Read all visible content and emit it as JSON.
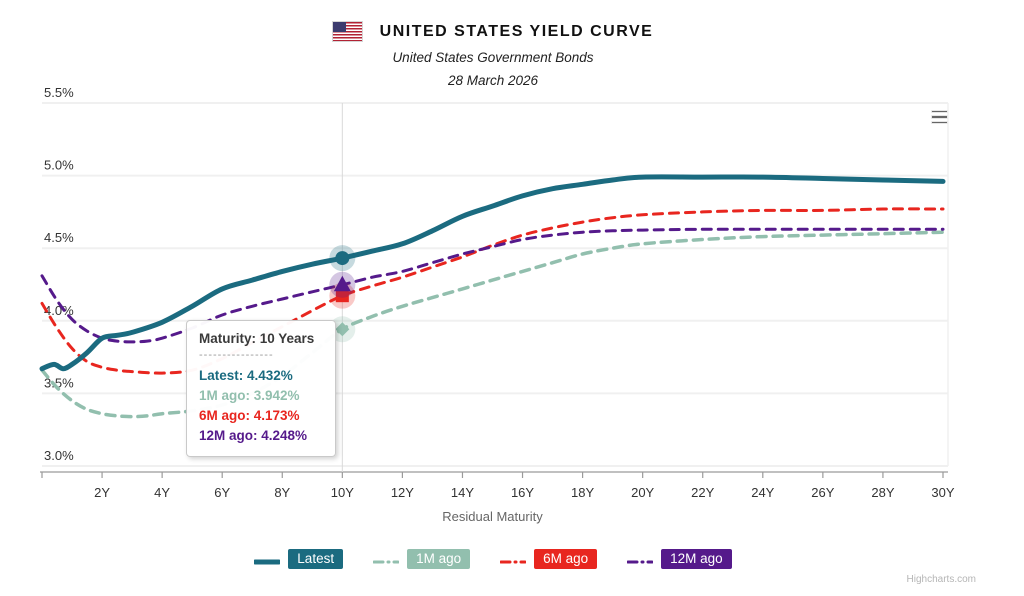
{
  "header": {
    "title": "UNITED STATES YIELD CURVE",
    "subtitle": "United States Government Bonds",
    "date": "28 March 2026"
  },
  "chart_data": {
    "type": "line",
    "title": "UNITED STATES YIELD CURVE",
    "subtitle": "United States Government Bonds",
    "date_annotation": "28 March 2026",
    "xlabel": "Residual Maturity",
    "ylabel": "",
    "xlim": [
      0,
      30
    ],
    "ylim": [
      3.0,
      5.5
    ],
    "grid": "horizontal",
    "legend_position": "bottom",
    "hover_maturity_years": 10,
    "y_ticks": [
      {
        "v": 5.5,
        "label": "5.5%"
      },
      {
        "v": 5.0,
        "label": "5.0%"
      },
      {
        "v": 4.5,
        "label": "4.5%"
      },
      {
        "v": 4.0,
        "label": "4.0%"
      },
      {
        "v": 3.5,
        "label": "3.5%"
      },
      {
        "v": 3.0,
        "label": "3.0%"
      }
    ],
    "x_ticks": [
      {
        "v": 0,
        "label": ""
      },
      {
        "v": 2,
        "label": "2Y"
      },
      {
        "v": 4,
        "label": "4Y"
      },
      {
        "v": 6,
        "label": "6Y"
      },
      {
        "v": 8,
        "label": "8Y"
      },
      {
        "v": 10,
        "label": "10Y"
      },
      {
        "v": 12,
        "label": "12Y"
      },
      {
        "v": 14,
        "label": "14Y"
      },
      {
        "v": 16,
        "label": "16Y"
      },
      {
        "v": 18,
        "label": "18Y"
      },
      {
        "v": 20,
        "label": "20Y"
      },
      {
        "v": 22,
        "label": "22Y"
      },
      {
        "v": 24,
        "label": "24Y"
      },
      {
        "v": 26,
        "label": "26Y"
      },
      {
        "v": 28,
        "label": "28Y"
      },
      {
        "v": 30,
        "label": "30Y"
      }
    ],
    "series": [
      {
        "name": "Latest",
        "color": "#1b6b80",
        "dash": "solid",
        "width": 5,
        "marker": "circle",
        "value_at_10y": 4.432,
        "points": [
          [
            0,
            3.67
          ],
          [
            0.4,
            3.7
          ],
          [
            0.7,
            3.67
          ],
          [
            1,
            3.7
          ],
          [
            1.5,
            3.78
          ],
          [
            2,
            3.88
          ],
          [
            2.5,
            3.9
          ],
          [
            3,
            3.92
          ],
          [
            4,
            3.99
          ],
          [
            5,
            4.1
          ],
          [
            6,
            4.22
          ],
          [
            7,
            4.28
          ],
          [
            8,
            4.34
          ],
          [
            9,
            4.39
          ],
          [
            10,
            4.432
          ],
          [
            11,
            4.48
          ],
          [
            12,
            4.53
          ],
          [
            13,
            4.62
          ],
          [
            14,
            4.72
          ],
          [
            15,
            4.79
          ],
          [
            16,
            4.86
          ],
          [
            17,
            4.91
          ],
          [
            18,
            4.94
          ],
          [
            19,
            4.97
          ],
          [
            20,
            4.99
          ],
          [
            22,
            4.99
          ],
          [
            24,
            4.99
          ],
          [
            26,
            4.98
          ],
          [
            28,
            4.97
          ],
          [
            30,
            4.96
          ]
        ]
      },
      {
        "name": "1M ago",
        "color": "#92bfae",
        "dash": "dashed",
        "width": 3.5,
        "marker": "diamond",
        "value_at_10y": 3.942,
        "points": [
          [
            0,
            3.66
          ],
          [
            0.5,
            3.54
          ],
          [
            1,
            3.45
          ],
          [
            1.5,
            3.39
          ],
          [
            2,
            3.36
          ],
          [
            2.5,
            3.345
          ],
          [
            3,
            3.34
          ],
          [
            3.5,
            3.345
          ],
          [
            4,
            3.36
          ],
          [
            5,
            3.38
          ],
          [
            6,
            3.42
          ],
          [
            7,
            3.5
          ],
          [
            8,
            3.62
          ],
          [
            9,
            3.78
          ],
          [
            10,
            3.942
          ],
          [
            11,
            4.03
          ],
          [
            12,
            4.1
          ],
          [
            13,
            4.16
          ],
          [
            14,
            4.22
          ],
          [
            15,
            4.28
          ],
          [
            16,
            4.34
          ],
          [
            17,
            4.4
          ],
          [
            18,
            4.46
          ],
          [
            19,
            4.5
          ],
          [
            20,
            4.53
          ],
          [
            22,
            4.56
          ],
          [
            24,
            4.58
          ],
          [
            26,
            4.59
          ],
          [
            28,
            4.6
          ],
          [
            30,
            4.61
          ]
        ]
      },
      {
        "name": "6M ago",
        "color": "#e8261f",
        "dash": "dashed",
        "width": 3,
        "marker": "square",
        "value_at_10y": 4.173,
        "points": [
          [
            0,
            4.12
          ],
          [
            0.5,
            3.95
          ],
          [
            1,
            3.81
          ],
          [
            1.5,
            3.72
          ],
          [
            2,
            3.68
          ],
          [
            2.5,
            3.66
          ],
          [
            3,
            3.65
          ],
          [
            4,
            3.64
          ],
          [
            5,
            3.66
          ],
          [
            6,
            3.74
          ],
          [
            7,
            3.85
          ],
          [
            8,
            3.96
          ],
          [
            9,
            4.07
          ],
          [
            10,
            4.173
          ],
          [
            11,
            4.24
          ],
          [
            12,
            4.3
          ],
          [
            13,
            4.37
          ],
          [
            14,
            4.44
          ],
          [
            15,
            4.52
          ],
          [
            16,
            4.59
          ],
          [
            17,
            4.64
          ],
          [
            18,
            4.68
          ],
          [
            19,
            4.71
          ],
          [
            20,
            4.73
          ],
          [
            22,
            4.75
          ],
          [
            24,
            4.76
          ],
          [
            26,
            4.76
          ],
          [
            28,
            4.77
          ],
          [
            30,
            4.77
          ]
        ]
      },
      {
        "name": "12M ago",
        "color": "#551a8b",
        "dash": "dashed",
        "width": 3,
        "marker": "triangle",
        "value_at_10y": 4.248,
        "points": [
          [
            0,
            4.31
          ],
          [
            0.5,
            4.14
          ],
          [
            1,
            4.01
          ],
          [
            1.5,
            3.93
          ],
          [
            2,
            3.88
          ],
          [
            2.5,
            3.86
          ],
          [
            3,
            3.855
          ],
          [
            3.5,
            3.86
          ],
          [
            4,
            3.88
          ],
          [
            5,
            3.95
          ],
          [
            6,
            4.04
          ],
          [
            7,
            4.1
          ],
          [
            8,
            4.15
          ],
          [
            9,
            4.2
          ],
          [
            10,
            4.248
          ],
          [
            11,
            4.3
          ],
          [
            12,
            4.34
          ],
          [
            13,
            4.4
          ],
          [
            14,
            4.46
          ],
          [
            15,
            4.51
          ],
          [
            16,
            4.56
          ],
          [
            17,
            4.59
          ],
          [
            18,
            4.61
          ],
          [
            19,
            4.62
          ],
          [
            20,
            4.625
          ],
          [
            22,
            4.63
          ],
          [
            24,
            4.63
          ],
          [
            26,
            4.63
          ],
          [
            28,
            4.63
          ],
          [
            30,
            4.63
          ]
        ]
      }
    ]
  },
  "tooltip": {
    "title": "Maturity: 10 Years",
    "divider": "----------------",
    "rows": [
      {
        "text": "Latest: 4.432%"
      },
      {
        "text": "1M ago: 3.942%"
      },
      {
        "text": "6M ago: 4.173%"
      },
      {
        "text": "12M ago: 4.248%"
      }
    ]
  },
  "legend": {
    "items": [
      {
        "label": "Latest"
      },
      {
        "label": "1M ago"
      },
      {
        "label": "6M ago"
      },
      {
        "label": "12M ago"
      }
    ]
  },
  "credits": "Highcharts.com"
}
